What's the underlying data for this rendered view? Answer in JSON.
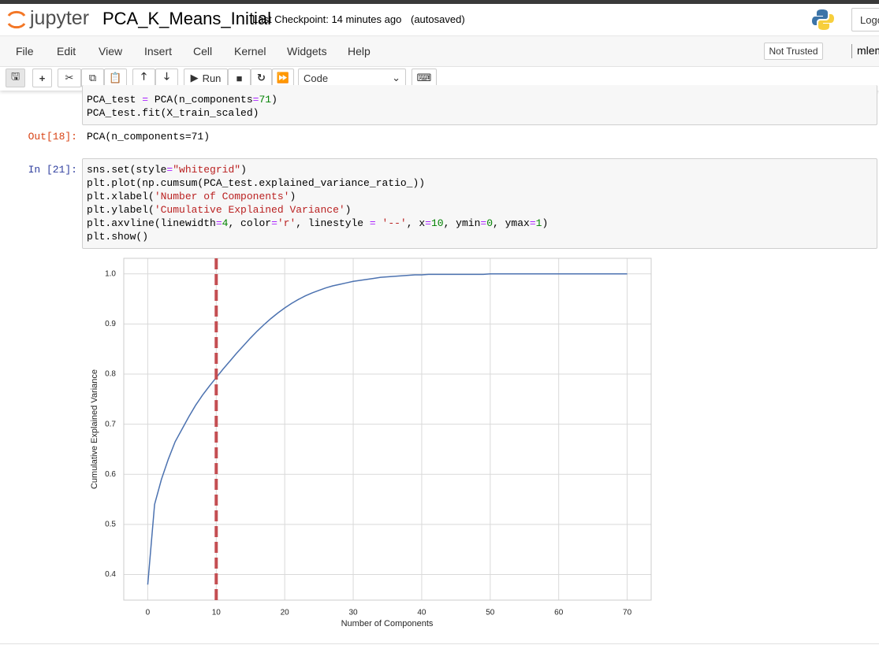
{
  "header": {
    "logo": "jupyter",
    "notebook_name": "PCA_K_Means_Initial",
    "checkpoint": "Last Checkpoint: 14 minutes ago",
    "autosave": "(autosaved)",
    "logout": "Logo"
  },
  "menu": {
    "items": [
      "File",
      "Edit",
      "View",
      "Insert",
      "Cell",
      "Kernel",
      "Widgets",
      "Help"
    ],
    "trust": "Not Trusted",
    "kernel": "mlem"
  },
  "toolbar": {
    "run": "Run",
    "cell_type": "Code"
  },
  "cells": [
    {
      "code": [
        "PCA_test = PCA(n_components=71)",
        "PCA_test.fit(X_train_scaled)"
      ]
    },
    {
      "prompt": "Out[18]:",
      "output": "PCA(n_components=71)"
    },
    {
      "prompt": "In [21]:",
      "code": [
        "sns.set(style=\"whitegrid\")",
        "plt.plot(np.cumsum(PCA_test.explained_variance_ratio_))",
        "plt.xlabel('Number of Components')",
        "plt.ylabel('Cumulative Explained Variance')",
        "plt.axvline(linewidth=4, color='r', linestyle = '--', x=10, ymin=0, ymax=1)",
        "plt.show()"
      ]
    }
  ],
  "chart_data": {
    "type": "line",
    "xlabel": "Number of Components",
    "ylabel": "Cumulative Explained Variance",
    "x": [
      0,
      1,
      2,
      3,
      4,
      5,
      6,
      7,
      8,
      9,
      10,
      11,
      12,
      13,
      14,
      15,
      16,
      17,
      18,
      19,
      20,
      21,
      22,
      23,
      24,
      25,
      26,
      27,
      28,
      29,
      30,
      31,
      32,
      33,
      34,
      35,
      36,
      37,
      38,
      39,
      40,
      41,
      42,
      43,
      44,
      45,
      46,
      47,
      48,
      49,
      50,
      51,
      52,
      53,
      54,
      55,
      56,
      57,
      58,
      59,
      60,
      61,
      62,
      63,
      64,
      65,
      66,
      67,
      68,
      69,
      70
    ],
    "values": [
      0.38,
      0.54,
      0.59,
      0.63,
      0.665,
      0.69,
      0.715,
      0.738,
      0.758,
      0.776,
      0.793,
      0.81,
      0.826,
      0.842,
      0.857,
      0.872,
      0.886,
      0.899,
      0.911,
      0.922,
      0.932,
      0.941,
      0.949,
      0.956,
      0.962,
      0.967,
      0.972,
      0.976,
      0.979,
      0.982,
      0.985,
      0.987,
      0.989,
      0.991,
      0.993,
      0.994,
      0.995,
      0.996,
      0.997,
      0.998,
      0.998,
      0.999,
      0.999,
      0.999,
      0.999,
      0.999,
      0.999,
      0.999,
      0.999,
      0.999,
      1.0,
      1.0,
      1.0,
      1.0,
      1.0,
      1.0,
      1.0,
      1.0,
      1.0,
      1.0,
      1.0,
      1.0,
      1.0,
      1.0,
      1.0,
      1.0,
      1.0,
      1.0,
      1.0,
      1.0,
      1.0
    ],
    "color": "#4c72b0",
    "vline": {
      "x": 10,
      "color": "#c44e52"
    },
    "xlim": [
      -3.5,
      73.5
    ],
    "ylim": [
      0.349,
      1.031
    ],
    "xticks": [
      0,
      10,
      20,
      30,
      40,
      50,
      60,
      70
    ],
    "yticks": [
      0.4,
      0.5,
      0.6,
      0.7,
      0.8,
      0.9,
      {
        "value": 1,
        "label": "1.0"
      }
    ],
    "grid": true
  }
}
